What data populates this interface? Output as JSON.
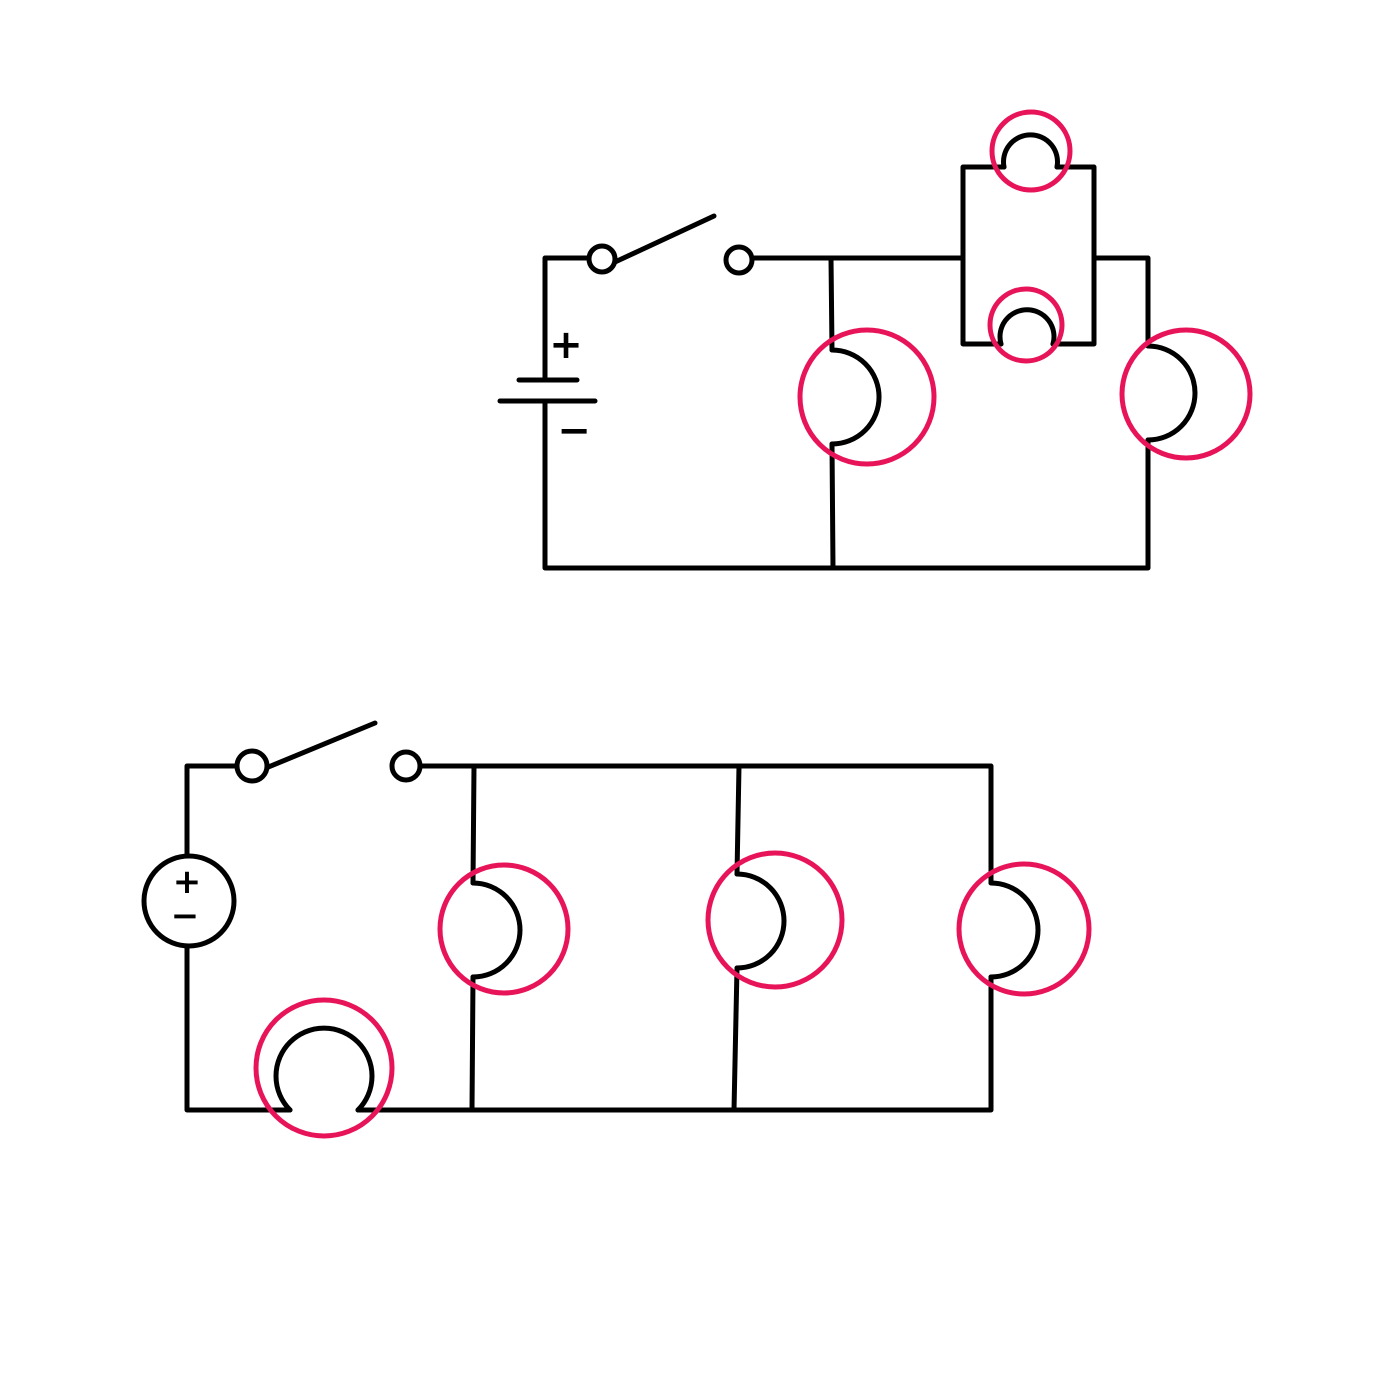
{
  "colors": {
    "wire": "#000000",
    "highlight": "#e8145a",
    "background": "#ffffff"
  },
  "diagrams": [
    {
      "id": "circuit-top",
      "source": "battery",
      "polarity_marks": [
        "+",
        "−"
      ],
      "switch": "open",
      "bulb_count": 4,
      "highlighted_bulbs": 4
    },
    {
      "id": "circuit-bottom",
      "source": "dc-voltage-source",
      "polarity_marks": [
        "+",
        "−"
      ],
      "switch": "open",
      "bulb_count": 4,
      "highlighted_bulbs": 4
    }
  ]
}
